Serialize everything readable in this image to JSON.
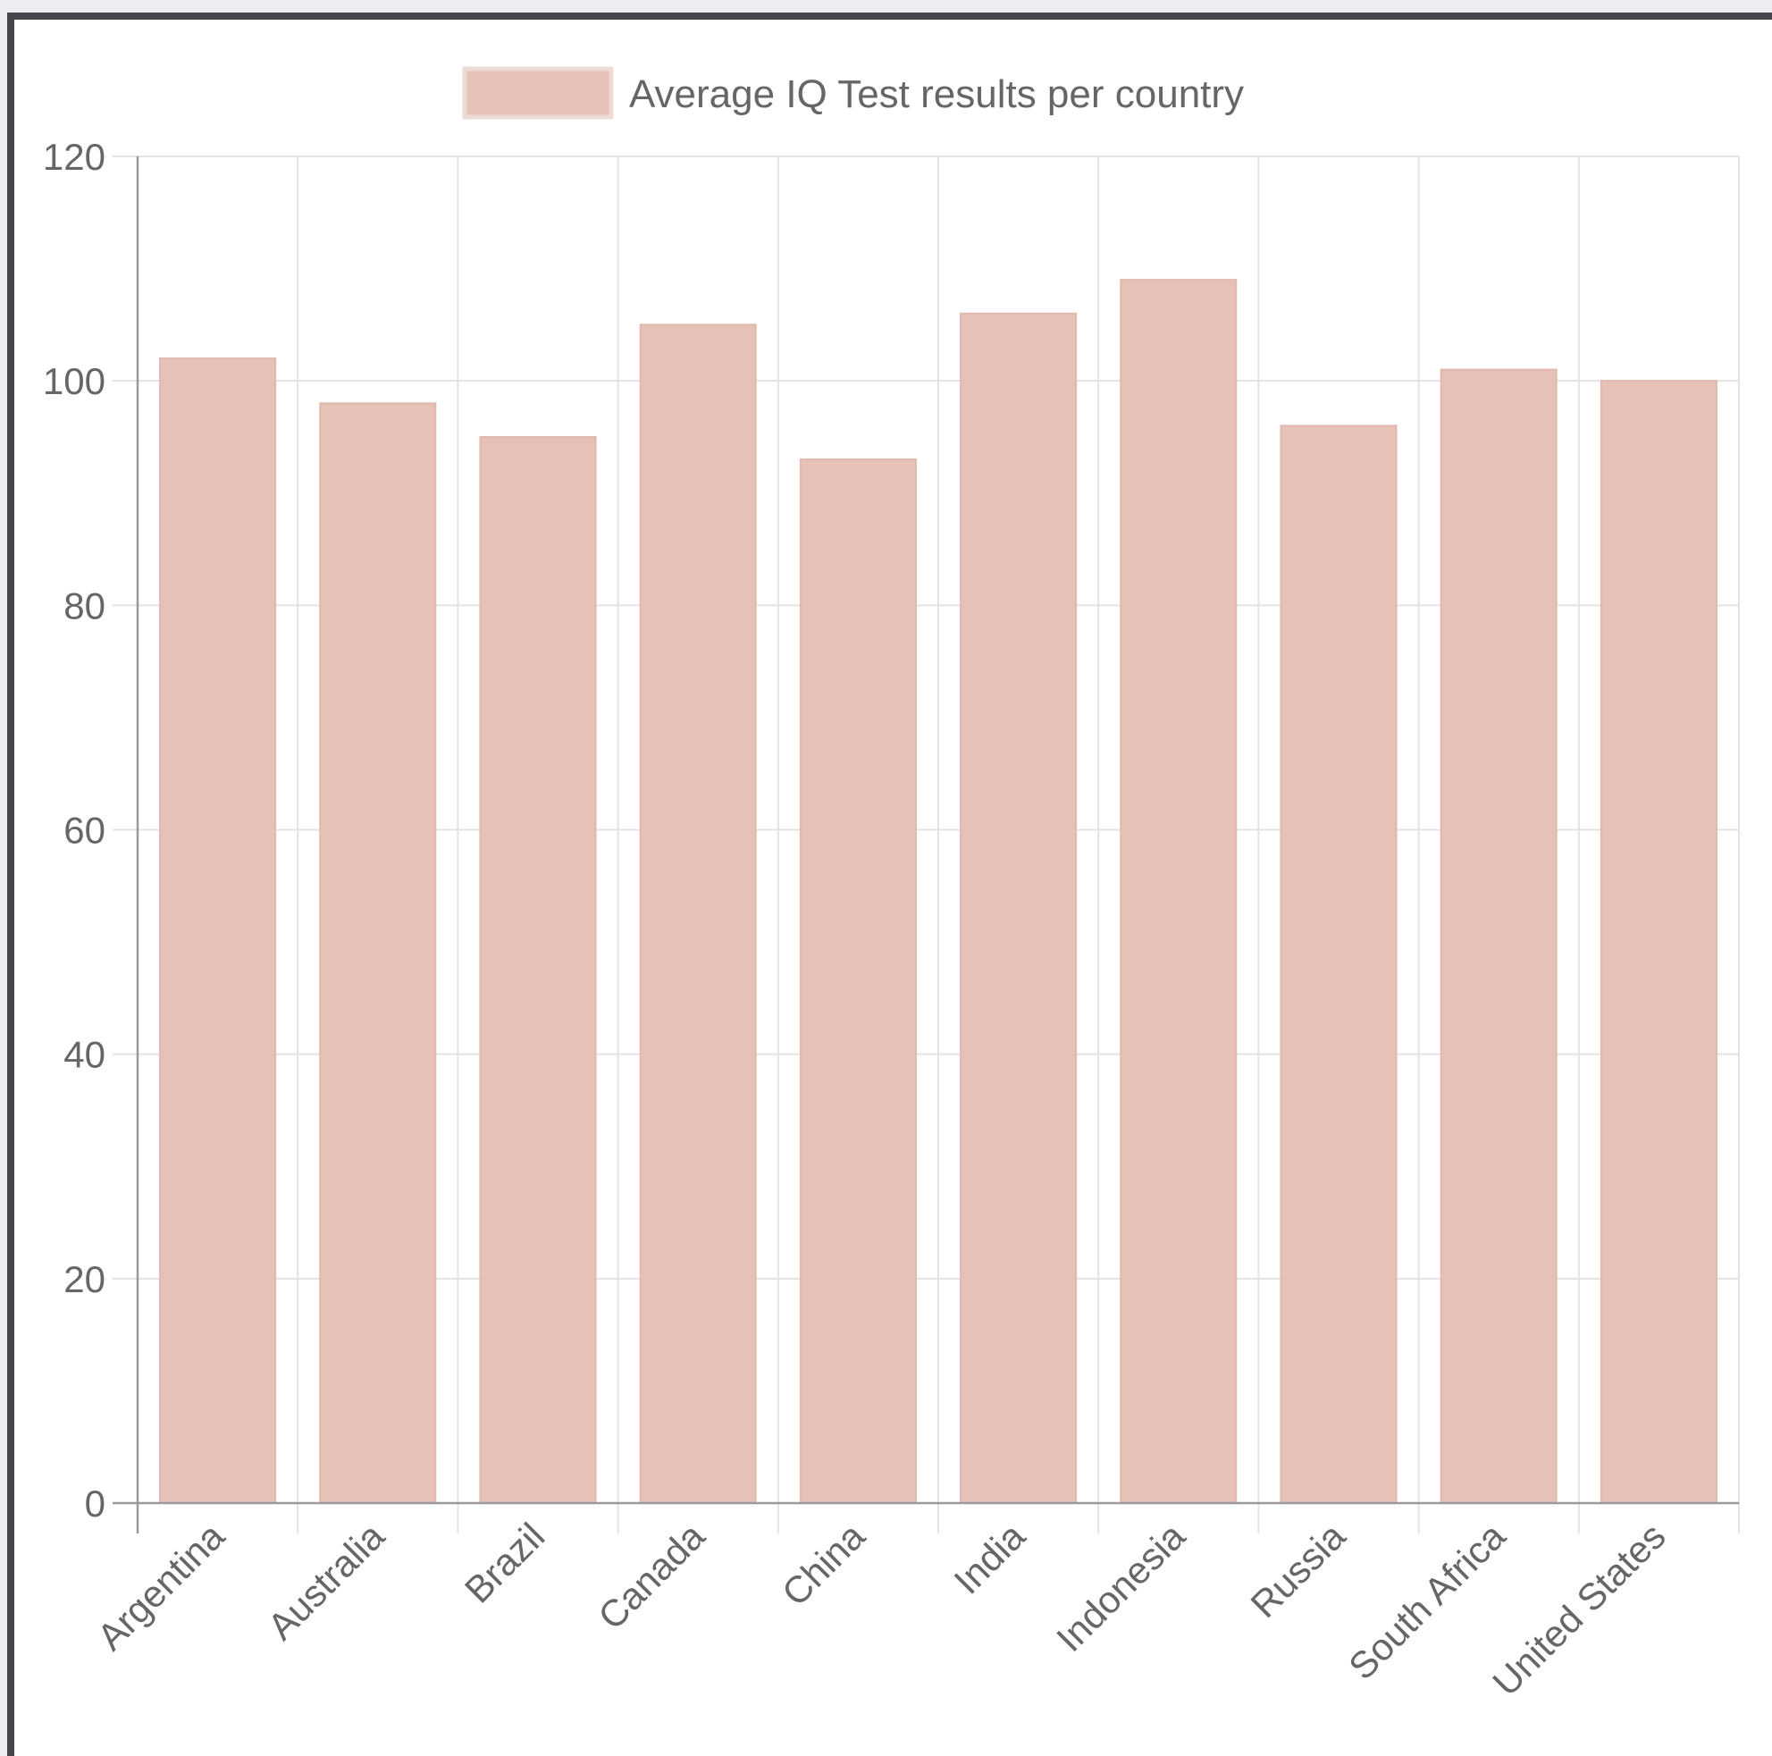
{
  "chart_data": {
    "type": "bar",
    "categories": [
      "Argentina",
      "Australia",
      "Brazil",
      "Canada",
      "China",
      "India",
      "Indonesia",
      "Russia",
      "South Africa",
      "United States"
    ],
    "series": [
      {
        "name": "Average IQ Test results per country",
        "values": [
          102,
          98,
          95,
          105,
          93,
          106,
          109,
          96,
          101,
          100
        ]
      }
    ],
    "ylim": [
      0,
      120
    ],
    "yticks": [
      "0",
      "20",
      "40",
      "60",
      "80",
      "100",
      "120"
    ],
    "grid": true,
    "legend": "top-center",
    "colors": {
      "bar": "#e5c1b7",
      "bar_border": "#e0b8ad",
      "grid": "#e3e3e3",
      "axis": "#9a9a9a"
    }
  }
}
